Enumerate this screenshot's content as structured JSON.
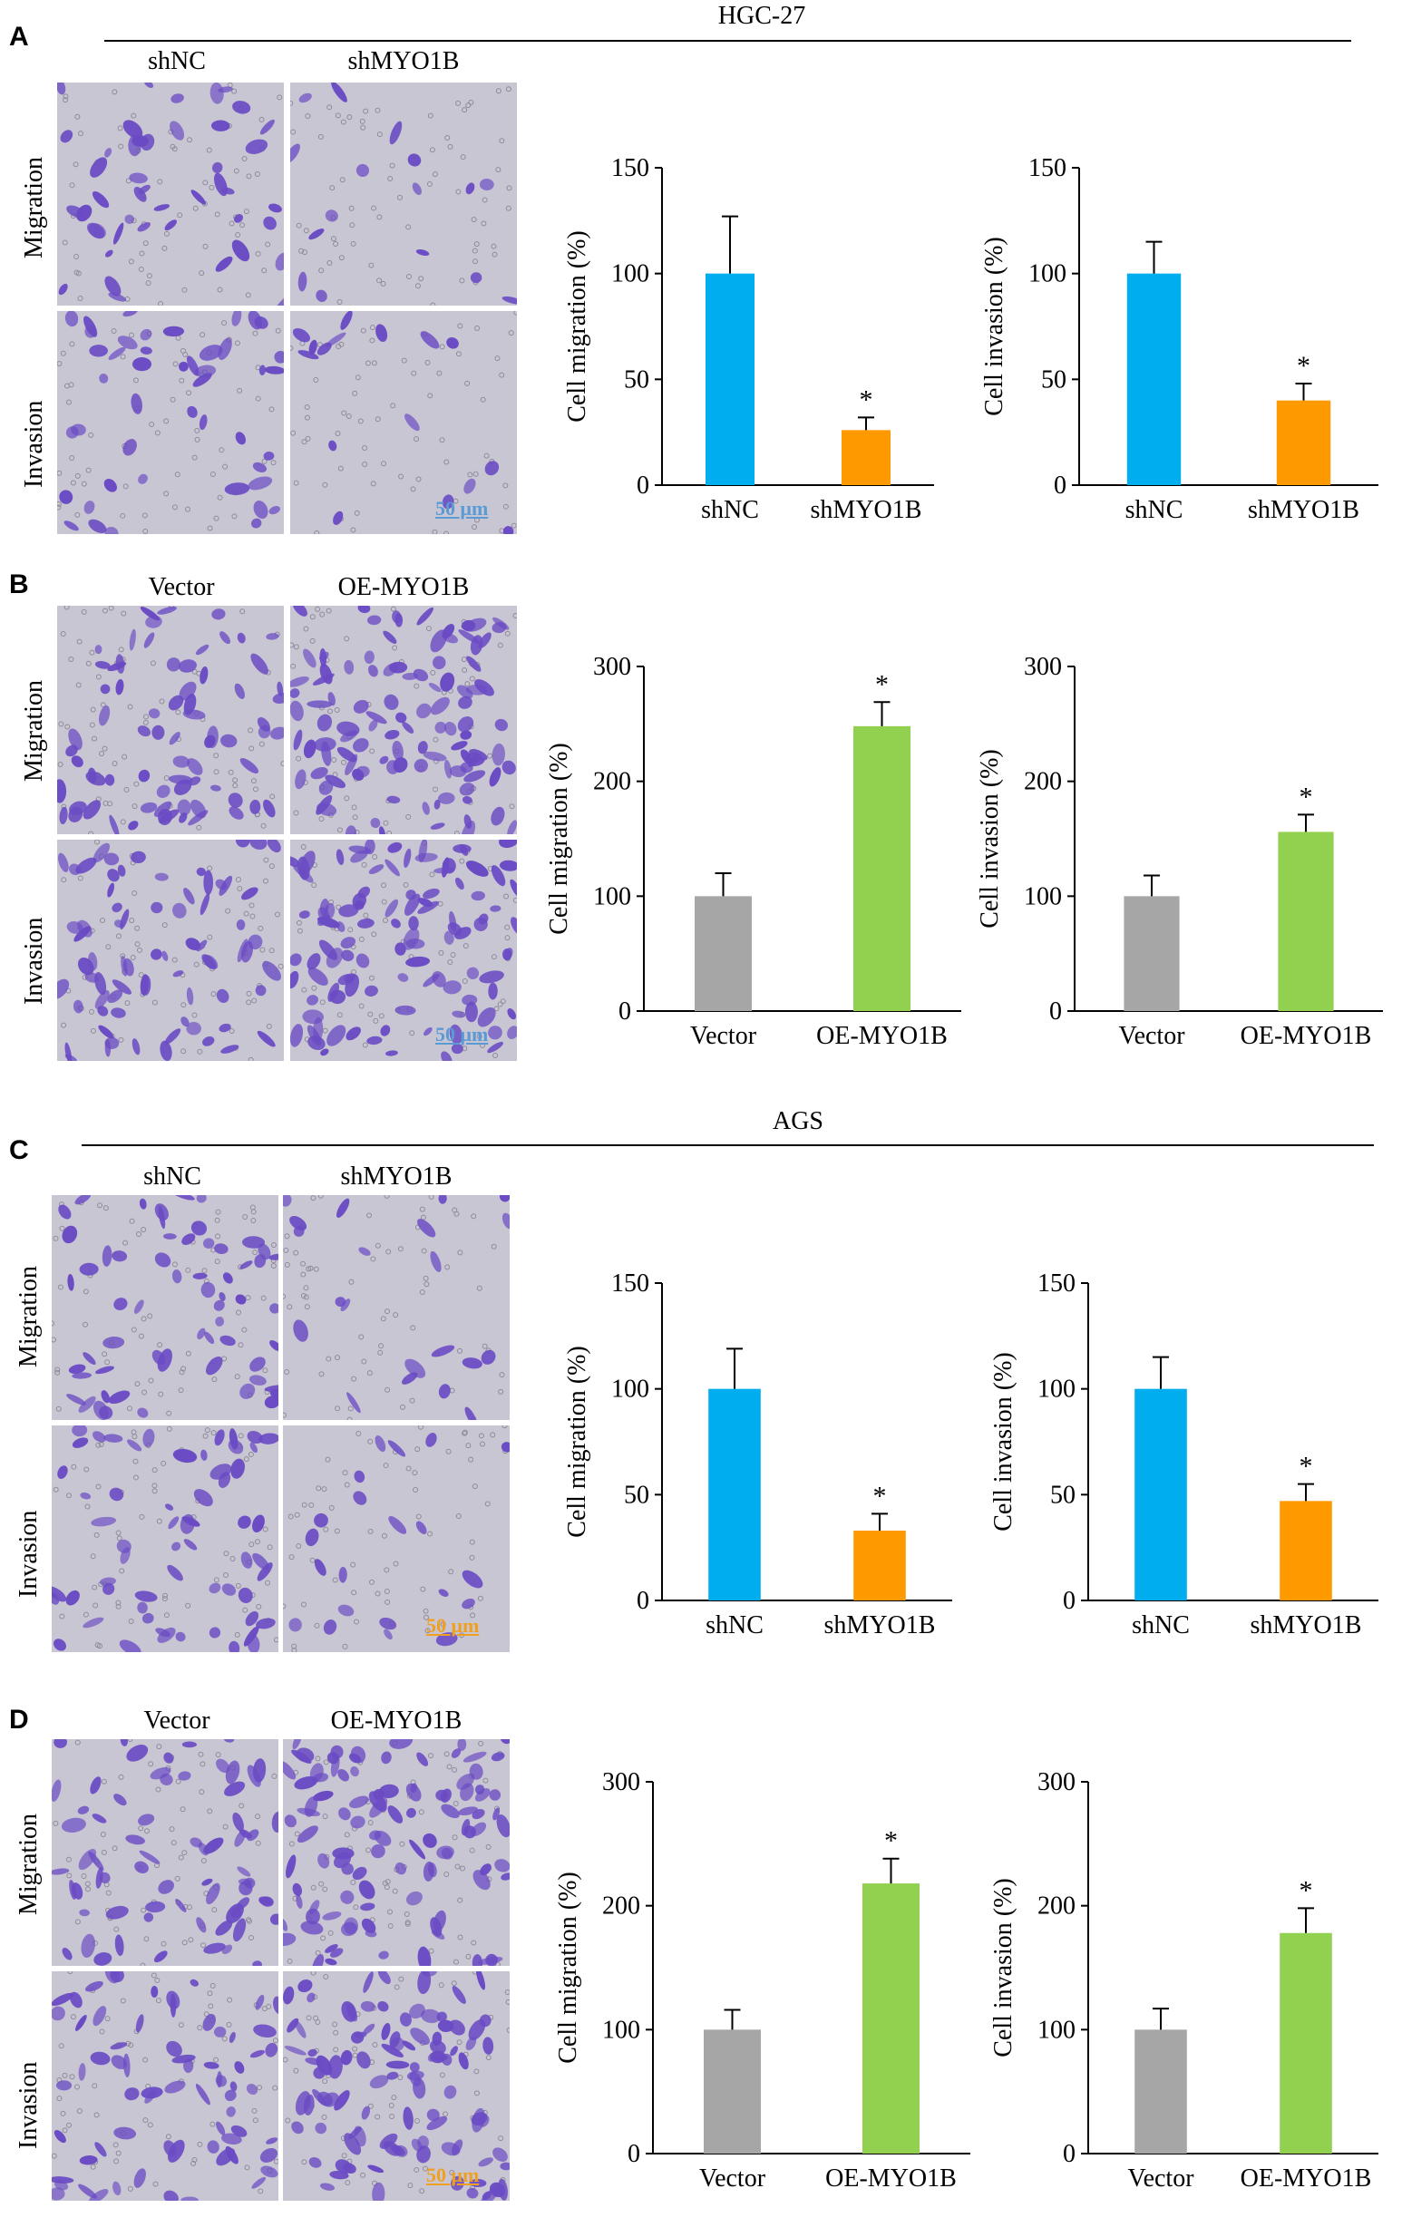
{
  "sections": [
    {
      "title": "HGC-27"
    },
    {
      "title": "AGS"
    }
  ],
  "panels": [
    {
      "label": "A",
      "group_left": "shNC",
      "group_right": "shMYO1B",
      "row_top": "Migration",
      "row_bottom": "Invasion",
      "scale_bar": "50 μm",
      "scale_color": "#5b9bd5",
      "cell_density": 1.0
    },
    {
      "label": "B",
      "group_left": "Vector",
      "group_right": "OE-MYO1B",
      "row_top": "Migration",
      "row_bottom": "Invasion",
      "scale_bar": "50 μm",
      "scale_color": "#5b9bd5",
      "cell_density": 1.6
    },
    {
      "label": "C",
      "group_left": "shNC",
      "group_right": "shMYO1B",
      "row_top": "Migration",
      "row_bottom": "Invasion",
      "scale_bar": "50 μm",
      "scale_color": "#f0a020",
      "cell_density": 1.3
    },
    {
      "label": "D",
      "group_left": "Vector",
      "group_right": "OE-MYO1B",
      "row_top": "Migration",
      "row_bottom": "Invasion",
      "scale_bar": "50 μm",
      "scale_color": "#f0a020",
      "cell_density": 1.5
    }
  ],
  "colors": {
    "blue": "#00aeef",
    "orange": "#ff9900",
    "gray": "#a6a6a6",
    "green": "#92d050",
    "micro_bg": "#c9c6d3",
    "cell": "#6a4bc4"
  },
  "chart_data": [
    {
      "type": "bar",
      "panel": "A",
      "ylabel": "Cell migration (%)",
      "ylim": [
        0,
        150
      ],
      "yticks": [
        0,
        50,
        100,
        150
      ],
      "categories": [
        "shNC",
        "shMYO1B"
      ],
      "values": [
        100,
        26
      ],
      "errors": [
        27,
        6
      ],
      "colors": [
        "#00aeef",
        "#ff9900"
      ],
      "significance": [
        "",
        "*"
      ]
    },
    {
      "type": "bar",
      "panel": "A",
      "ylabel": "Cell invasion (%)",
      "ylim": [
        0,
        150
      ],
      "yticks": [
        0,
        50,
        100,
        150
      ],
      "categories": [
        "shNC",
        "shMYO1B"
      ],
      "values": [
        100,
        40
      ],
      "errors": [
        15,
        8
      ],
      "colors": [
        "#00aeef",
        "#ff9900"
      ],
      "significance": [
        "",
        "*"
      ]
    },
    {
      "type": "bar",
      "panel": "B",
      "ylabel": "Cell migration (%)",
      "ylim": [
        0,
        300
      ],
      "yticks": [
        0,
        100,
        200,
        300
      ],
      "categories": [
        "Vector",
        "OE-MYO1B"
      ],
      "values": [
        100,
        248
      ],
      "errors": [
        20,
        21
      ],
      "colors": [
        "#a6a6a6",
        "#92d050"
      ],
      "significance": [
        "",
        "*"
      ]
    },
    {
      "type": "bar",
      "panel": "B",
      "ylabel": "Cell invasion (%)",
      "ylim": [
        0,
        300
      ],
      "yticks": [
        0,
        100,
        200,
        300
      ],
      "categories": [
        "Vector",
        "OE-MYO1B"
      ],
      "values": [
        100,
        156
      ],
      "errors": [
        18,
        15
      ],
      "colors": [
        "#a6a6a6",
        "#92d050"
      ],
      "significance": [
        "",
        "*"
      ]
    },
    {
      "type": "bar",
      "panel": "C",
      "ylabel": "Cell migration (%)",
      "ylim": [
        0,
        150
      ],
      "yticks": [
        0,
        50,
        100,
        150
      ],
      "categories": [
        "shNC",
        "shMYO1B"
      ],
      "values": [
        100,
        33
      ],
      "errors": [
        19,
        8
      ],
      "colors": [
        "#00aeef",
        "#ff9900"
      ],
      "significance": [
        "",
        "*"
      ]
    },
    {
      "type": "bar",
      "panel": "C",
      "ylabel": "Cell invasion (%)",
      "ylim": [
        0,
        150
      ],
      "yticks": [
        0,
        50,
        100,
        150
      ],
      "categories": [
        "shNC",
        "shMYO1B"
      ],
      "values": [
        100,
        47
      ],
      "errors": [
        15,
        8
      ],
      "colors": [
        "#00aeef",
        "#ff9900"
      ],
      "significance": [
        "",
        "*"
      ]
    },
    {
      "type": "bar",
      "panel": "D",
      "ylabel": "Cell migration (%)",
      "ylim": [
        0,
        300
      ],
      "yticks": [
        0,
        100,
        200,
        300
      ],
      "categories": [
        "Vector",
        "OE-MYO1B"
      ],
      "values": [
        100,
        218
      ],
      "errors": [
        16,
        20
      ],
      "colors": [
        "#a6a6a6",
        "#92d050"
      ],
      "significance": [
        "",
        "*"
      ]
    },
    {
      "type": "bar",
      "panel": "D",
      "ylabel": "Cell invasion (%)",
      "ylim": [
        0,
        300
      ],
      "yticks": [
        0,
        100,
        200,
        300
      ],
      "categories": [
        "Vector",
        "OE-MYO1B"
      ],
      "values": [
        100,
        178
      ],
      "errors": [
        17,
        20
      ],
      "colors": [
        "#a6a6a6",
        "#92d050"
      ],
      "significance": [
        "",
        "*"
      ]
    }
  ]
}
